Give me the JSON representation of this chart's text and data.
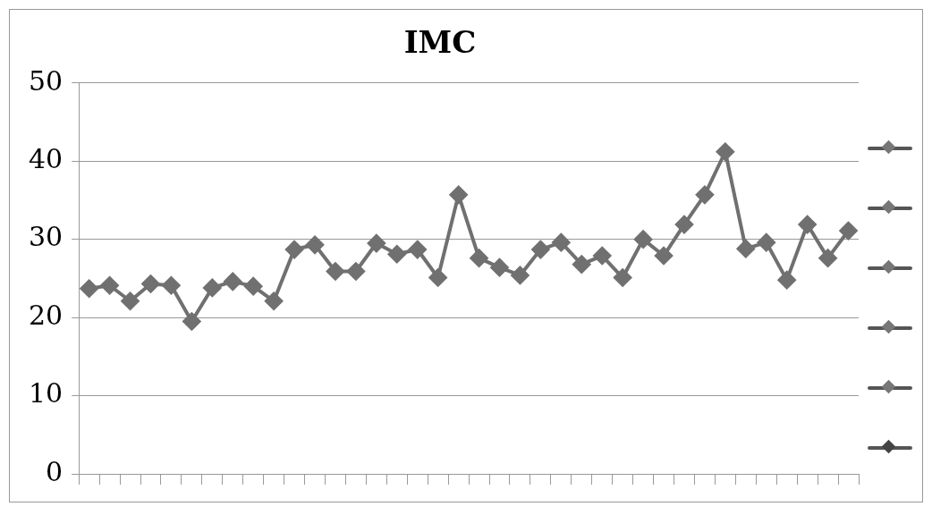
{
  "chart_data": {
    "type": "line",
    "title": "IMC",
    "categories": [
      null,
      null,
      null,
      null,
      null,
      null,
      null,
      null,
      null,
      null,
      null,
      null,
      null,
      null,
      null,
      null,
      null,
      null,
      null,
      null,
      null,
      null,
      null,
      null,
      null,
      null,
      null,
      null,
      null,
      null,
      null,
      null,
      null,
      null,
      null,
      null,
      null,
      null
    ],
    "series": [
      {
        "color": "#707070",
        "values": [
          23.7,
          24.1,
          22.1,
          24.3,
          24.1,
          19.5,
          23.8,
          24.6,
          24.0,
          22.1,
          28.7,
          29.3,
          25.9,
          25.9,
          29.5,
          28.1,
          28.7,
          25.1,
          35.7,
          27.6,
          26.4,
          25.4,
          28.7,
          29.6,
          26.8,
          27.9,
          25.1,
          30.0,
          27.9,
          31.9,
          35.7,
          41.2,
          28.8,
          29.6,
          24.8,
          31.9,
          27.6,
          31.1
        ]
      }
    ],
    "ylim": [
      0,
      50
    ],
    "yticks": [
      0,
      10,
      20,
      30,
      40,
      50
    ],
    "grid": "y",
    "marker": "diamond",
    "line_style": "solid",
    "tick_labels": "y"
  }
}
